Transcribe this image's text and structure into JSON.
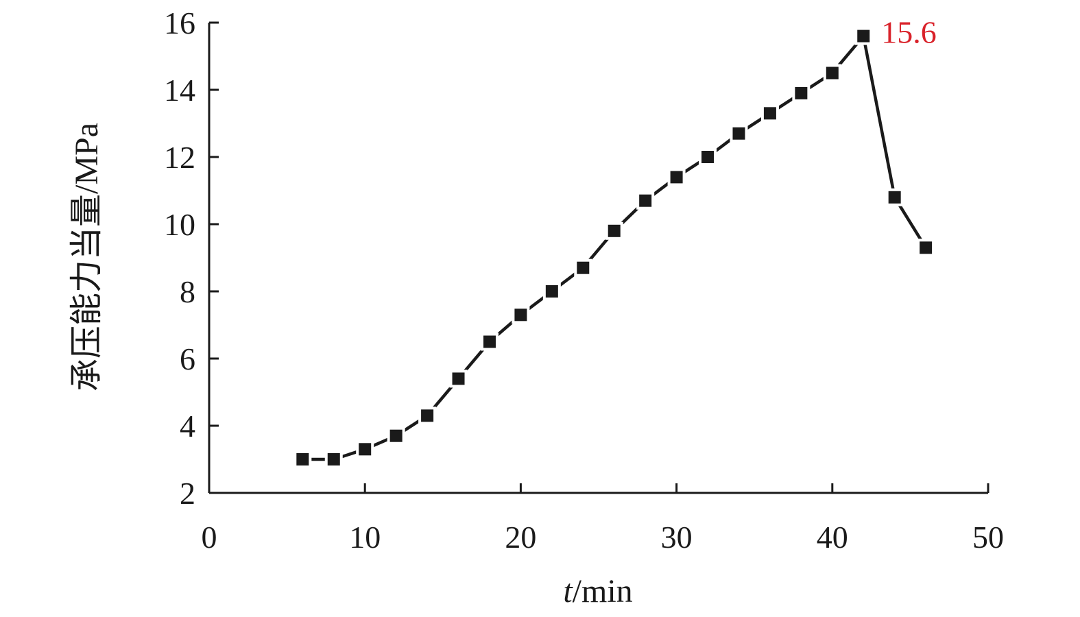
{
  "chart_data": {
    "type": "line",
    "title": "",
    "xlabel": "t/min",
    "ylabel": "承压能力当量/MPa",
    "xlim": [
      0,
      50
    ],
    "ylim": [
      2,
      16
    ],
    "x_ticks": [
      0,
      10,
      20,
      30,
      40,
      50
    ],
    "y_ticks": [
      2,
      4,
      6,
      8,
      10,
      12,
      14,
      16
    ],
    "grid": false,
    "series": [
      {
        "marker": "square",
        "color": "#1a1a1a",
        "points": [
          {
            "x": 6,
            "y": 3.0
          },
          {
            "x": 8,
            "y": 3.0
          },
          {
            "x": 10,
            "y": 3.3
          },
          {
            "x": 12,
            "y": 3.7
          },
          {
            "x": 14,
            "y": 4.3
          },
          {
            "x": 16,
            "y": 5.4
          },
          {
            "x": 18,
            "y": 6.5
          },
          {
            "x": 20,
            "y": 7.3
          },
          {
            "x": 22,
            "y": 8.0
          },
          {
            "x": 24,
            "y": 8.7
          },
          {
            "x": 26,
            "y": 9.8
          },
          {
            "x": 28,
            "y": 10.7
          },
          {
            "x": 30,
            "y": 11.4
          },
          {
            "x": 32,
            "y": 12.0
          },
          {
            "x": 34,
            "y": 12.7
          },
          {
            "x": 36,
            "y": 13.3
          },
          {
            "x": 38,
            "y": 13.9
          },
          {
            "x": 40,
            "y": 14.5
          },
          {
            "x": 42,
            "y": 15.6
          },
          {
            "x": 44,
            "y": 10.8
          },
          {
            "x": 46,
            "y": 9.3
          }
        ]
      }
    ],
    "annotations": [
      {
        "text": "15.6",
        "x": 42,
        "y": 15.6,
        "color": "#d9222a"
      }
    ]
  }
}
